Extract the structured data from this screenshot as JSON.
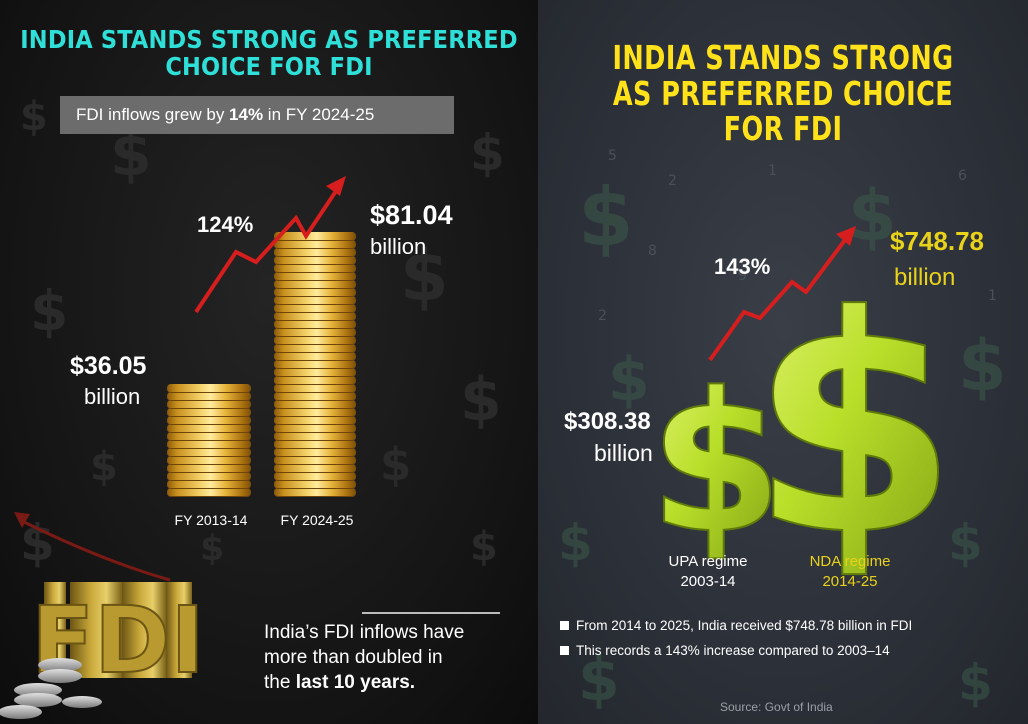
{
  "left_panel": {
    "title": "INDIA STANDS STRONG AS PREFERRED CHOICE FOR FDI",
    "subtitle_prefix": "FDI inflows grew by ",
    "subtitle_bold": "14%",
    "subtitle_suffix": " in FY 2024-25",
    "growth_label": "124%",
    "note_line1": "India’s FDI inflows have",
    "note_line2": "more than doubled in",
    "note_line3_prefix": "the ",
    "note_line3_bold": "last 10 years.",
    "fdi_decor_text": "FDI",
    "colors": {
      "title": "#2ee0d8",
      "arrow": "#e02020",
      "coins": "#f0c040"
    }
  },
  "right_panel": {
    "title": "INDIA STANDS STRONG AS PREFERRED CHOICE FOR FDI",
    "growth_label": "143%",
    "bullets": [
      "From 2014 to 2025, India received $748.78 billion in FDI",
      "This records a 143% increase compared to 2003–14"
    ],
    "source": "Source: Govt of India",
    "colors": {
      "title": "#ffe21a",
      "highlight": "#e8d21a",
      "dollar": "#b9e23a",
      "arrow": "#e02020"
    }
  },
  "chart_data": [
    {
      "type": "bar",
      "categories": [
        "FY 2013-14",
        "FY 2024-25"
      ],
      "values": [
        36.05,
        81.04
      ],
      "value_labels": [
        "$36.05",
        "$81.04"
      ],
      "unit_label": "billion",
      "growth": "124%",
      "ylim": [
        0,
        90
      ],
      "grid": false
    },
    {
      "type": "bar",
      "categories": [
        "UPA regime 2003-14",
        "NDA regime 2014-25"
      ],
      "category_line1": [
        "UPA regime",
        "NDA regime"
      ],
      "category_line2": [
        "2003-14",
        "2014-25"
      ],
      "values": [
        308.38,
        748.78
      ],
      "value_labels": [
        "$308.38",
        "$748.78"
      ],
      "unit_label": "billion",
      "growth": "143%",
      "grid": false
    }
  ]
}
